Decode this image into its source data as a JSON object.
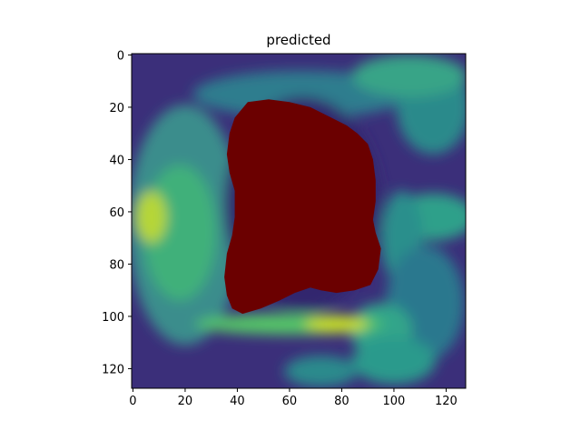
{
  "chart_data": {
    "type": "heatmap",
    "title": "predicted",
    "xlabel": "",
    "ylabel": "",
    "xlim": [
      -0.5,
      127.5
    ],
    "ylim": [
      127.5,
      -0.5
    ],
    "x_ticks": [
      0,
      20,
      40,
      60,
      80,
      100,
      120
    ],
    "y_ticks": [
      0,
      20,
      40,
      60,
      80,
      100,
      120
    ],
    "x_tick_labels": [
      "0",
      "20",
      "40",
      "60",
      "80",
      "100",
      "120"
    ],
    "y_tick_labels": [
      "0",
      "20",
      "40",
      "60",
      "80",
      "100",
      "120"
    ],
    "colormap": "viridis",
    "background_color": "#3b2f7a",
    "mask_color": "#6b0000",
    "mask_outline": [
      [
        44,
        18
      ],
      [
        52,
        17
      ],
      [
        60,
        18
      ],
      [
        68,
        20
      ],
      [
        76,
        24
      ],
      [
        82,
        27
      ],
      [
        86,
        30
      ],
      [
        90,
        34
      ],
      [
        92,
        40
      ],
      [
        93,
        48
      ],
      [
        93,
        56
      ],
      [
        92,
        63
      ],
      [
        93,
        68
      ],
      [
        95,
        74
      ],
      [
        94,
        82
      ],
      [
        91,
        88
      ],
      [
        85,
        90
      ],
      [
        78,
        91
      ],
      [
        72,
        90
      ],
      [
        68,
        89
      ],
      [
        62,
        91
      ],
      [
        56,
        94
      ],
      [
        49,
        97
      ],
      [
        42,
        99
      ],
      [
        38,
        97
      ],
      [
        36,
        92
      ],
      [
        35,
        85
      ],
      [
        36,
        76
      ],
      [
        38,
        69
      ],
      [
        39,
        62
      ],
      [
        39,
        52
      ],
      [
        37,
        45
      ],
      [
        36,
        38
      ],
      [
        37,
        30
      ],
      [
        39,
        24
      ]
    ],
    "image_regions": [
      {
        "shape": "ellipse",
        "cx": 20,
        "cy": 65,
        "rx": 22,
        "ry": 46,
        "color": "#3b8d8c"
      },
      {
        "shape": "ellipse",
        "cx": 18,
        "cy": 68,
        "rx": 14,
        "ry": 26,
        "color": "#3fb07a"
      },
      {
        "shape": "ellipse",
        "cx": 7,
        "cy": 62,
        "rx": 6,
        "ry": 10,
        "color": "#b6d637"
      },
      {
        "shape": "ellipse",
        "cx": 65,
        "cy": 15,
        "rx": 42,
        "ry": 9,
        "color": "#2f7d8e"
      },
      {
        "shape": "ellipse",
        "cx": 115,
        "cy": 20,
        "rx": 14,
        "ry": 18,
        "color": "#2c8a8b"
      },
      {
        "shape": "ellipse",
        "cx": 106,
        "cy": 8,
        "rx": 22,
        "ry": 8,
        "color": "#37a487"
      },
      {
        "shape": "ellipse",
        "cx": 115,
        "cy": 62,
        "rx": 16,
        "ry": 9,
        "color": "#2fa08a"
      },
      {
        "shape": "ellipse",
        "cx": 103,
        "cy": 70,
        "rx": 8,
        "ry": 18,
        "color": "#2a8f8c"
      },
      {
        "shape": "ellipse",
        "cx": 112,
        "cy": 95,
        "rx": 15,
        "ry": 22,
        "color": "#2a788e"
      },
      {
        "shape": "ellipse",
        "cx": 95,
        "cy": 105,
        "rx": 12,
        "ry": 10,
        "color": "#33a58a"
      },
      {
        "shape": "ellipse",
        "cx": 60,
        "cy": 103,
        "rx": 36,
        "ry": 4,
        "color": "#55c667"
      },
      {
        "shape": "ellipse",
        "cx": 78,
        "cy": 103,
        "rx": 12,
        "ry": 3,
        "color": "#cde11d"
      },
      {
        "shape": "ellipse",
        "cx": 100,
        "cy": 117,
        "rx": 16,
        "ry": 9,
        "color": "#2c9a8c"
      },
      {
        "shape": "ellipse",
        "cx": 72,
        "cy": 121,
        "rx": 14,
        "ry": 6,
        "color": "#2a8a8c"
      },
      {
        "shape": "ellipse",
        "cx": 65,
        "cy": 57,
        "rx": 30,
        "ry": 41,
        "color": "#31266e"
      }
    ]
  }
}
